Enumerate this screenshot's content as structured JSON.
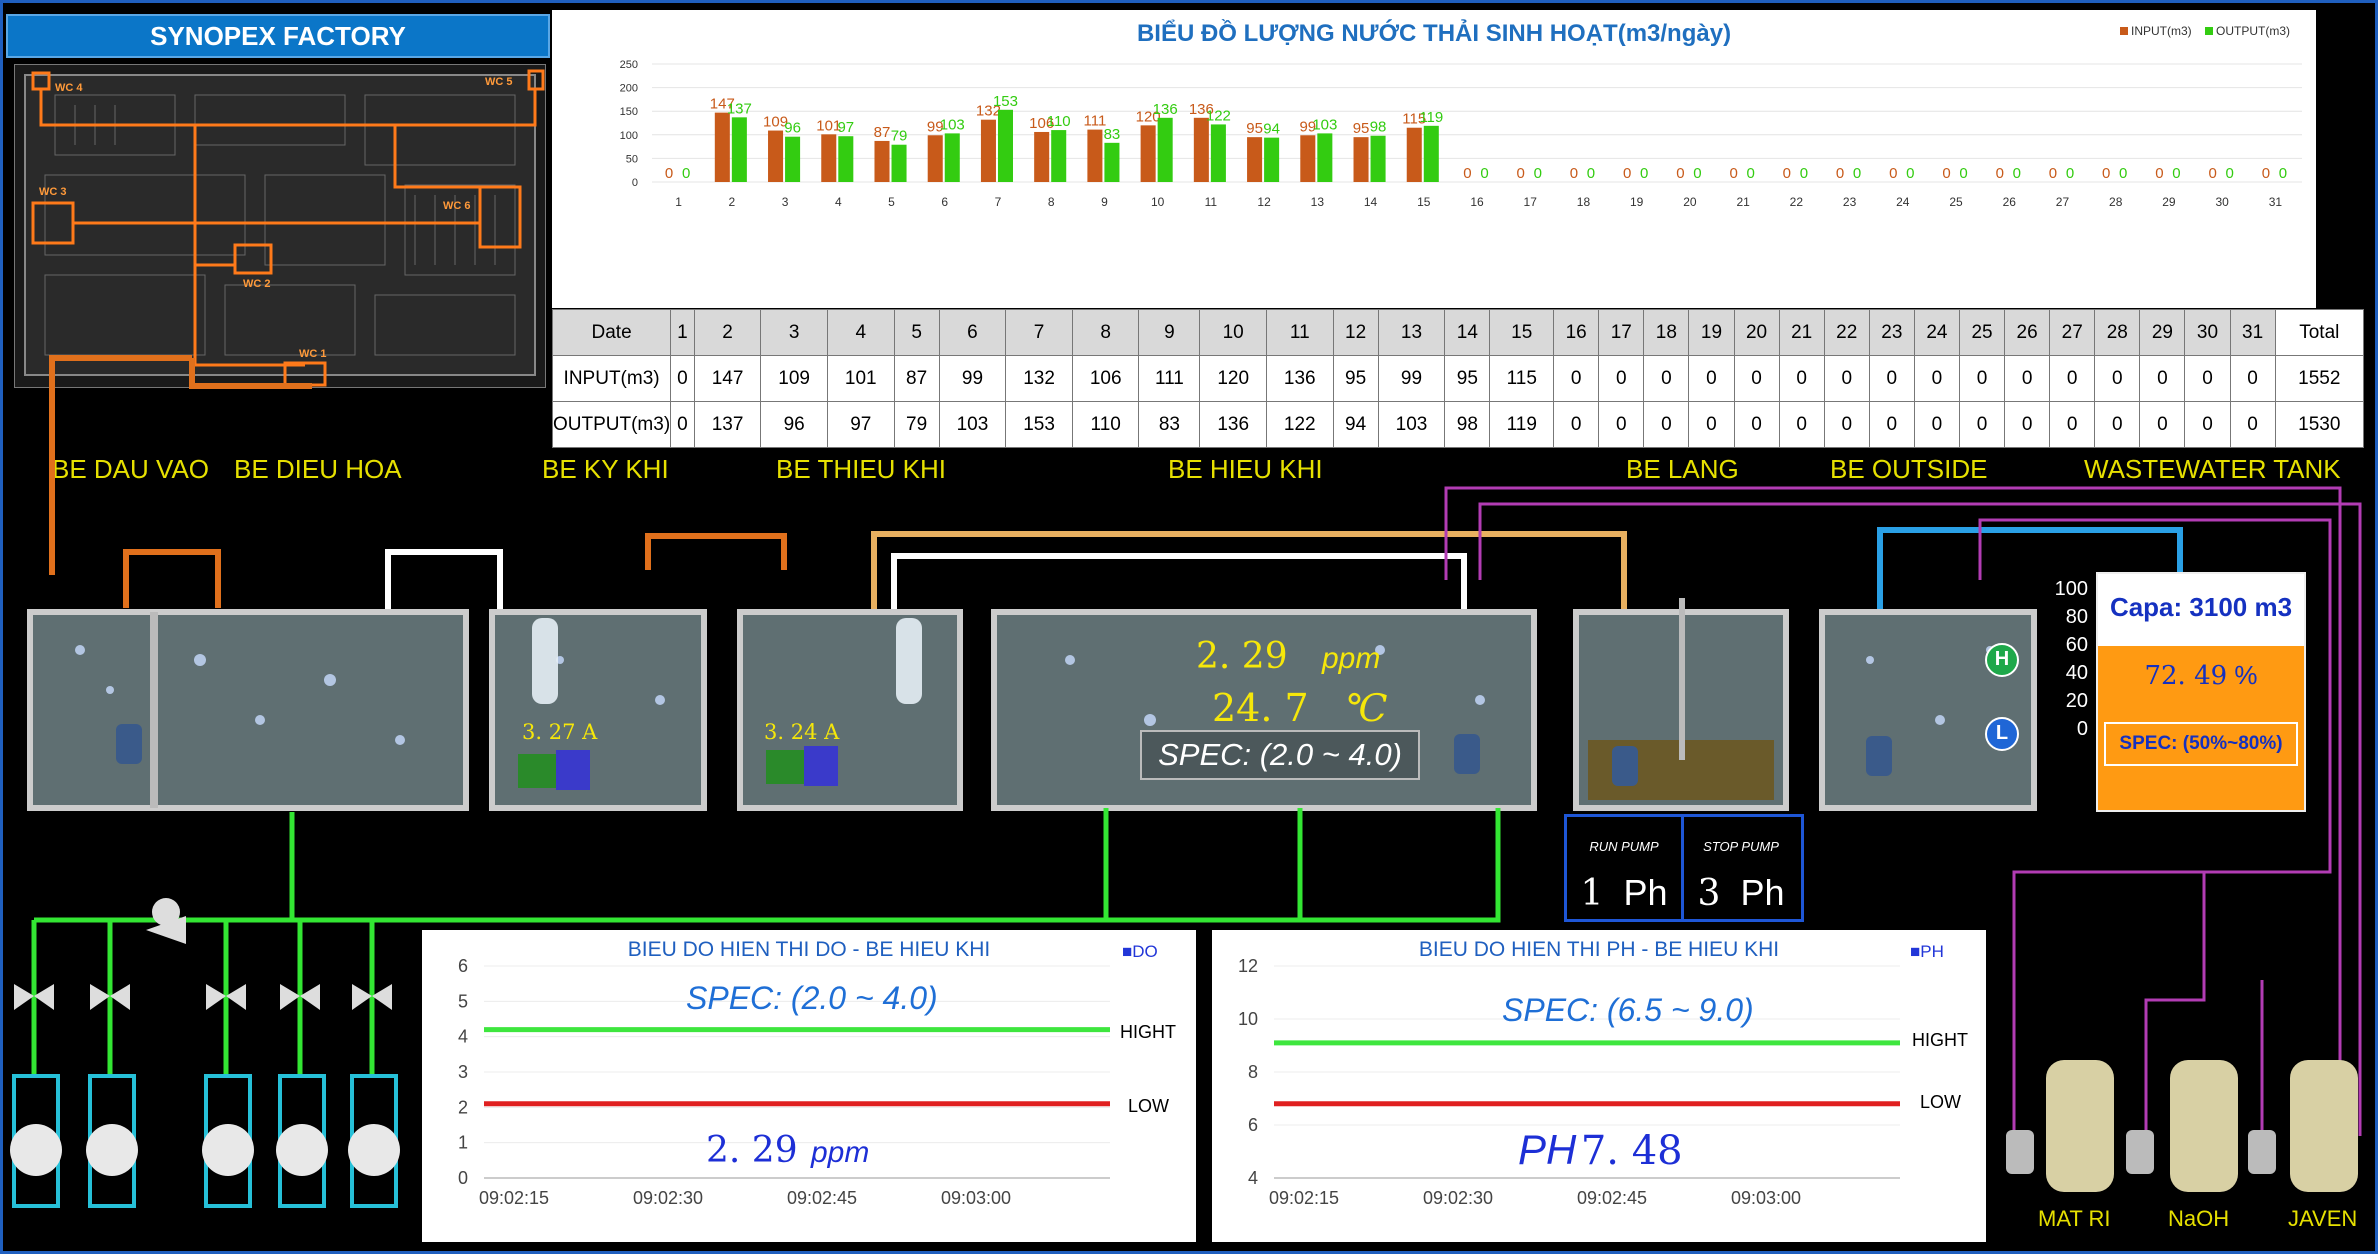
{
  "factory": {
    "title": "SYNOPEX FACTORY",
    "wc_labels": [
      "WC 4",
      "WC 5",
      "WC 3",
      "WC 6",
      "WC 2",
      "WC 1"
    ]
  },
  "chart_data": {
    "type": "bar",
    "title": "BIỂU ĐỒ LƯỢNG NƯỚC THẢI SINH HOẠT(m3/ngày)",
    "categories": [
      "1",
      "2",
      "3",
      "4",
      "5",
      "6",
      "7",
      "8",
      "9",
      "10",
      "11",
      "12",
      "13",
      "14",
      "15",
      "16",
      "17",
      "18",
      "19",
      "20",
      "21",
      "22",
      "23",
      "24",
      "25",
      "26",
      "27",
      "28",
      "29",
      "30",
      "31"
    ],
    "series": [
      {
        "name": "INPUT(m3)",
        "color": "#c85a1a",
        "values": [
          0,
          147,
          109,
          101,
          87,
          99,
          132,
          106,
          111,
          120,
          136,
          95,
          99,
          95,
          115,
          0,
          0,
          0,
          0,
          0,
          0,
          0,
          0,
          0,
          0,
          0,
          0,
          0,
          0,
          0,
          0
        ]
      },
      {
        "name": "OUTPUT(m3)",
        "color": "#33cc11",
        "values": [
          0,
          137,
          96,
          97,
          79,
          103,
          153,
          110,
          83,
          136,
          122,
          94,
          103,
          98,
          119,
          0,
          0,
          0,
          0,
          0,
          0,
          0,
          0,
          0,
          0,
          0,
          0,
          0,
          0,
          0,
          0
        ]
      }
    ],
    "ylim": [
      0,
      250
    ],
    "yticks": [
      0,
      50,
      100,
      150,
      200,
      250
    ],
    "legend": "top-right",
    "grid": true
  },
  "table": {
    "date_label": "Date",
    "input_label": "INPUT(m3)",
    "output_label": "OUTPUT(m3)",
    "total_label": "Total",
    "input_total": "1552",
    "output_total": "1530"
  },
  "tanks": {
    "be_dau_vao": "BE DAU VAO",
    "be_dieu_hoa": "BE DIEU HOA",
    "be_ky_khi": "BE KY KHI",
    "be_thieu_khi": "BE THIEU KHI",
    "be_hieu_khi": "BE HIEU KHI",
    "be_lang": "BE LANG",
    "be_outside": "BE OUTSIDE",
    "wastewater_tank": "WASTEWATER TANK"
  },
  "readings": {
    "current_1": "3. 27",
    "current_1_unit": "A",
    "current_2": "3. 24",
    "current_2_unit": "A",
    "do_value": "2. 29",
    "do_unit": "ppm",
    "temp_value": "24. 7",
    "temp_unit": "℃",
    "do_spec": "SPEC: (2.0 ~ 4.0)"
  },
  "level_indicators": {
    "high": "H",
    "low": "L"
  },
  "level_scale": [
    "100",
    "80",
    "60",
    "40",
    "20",
    "0"
  ],
  "wastewater": {
    "capa": "Capa: 3100 m3",
    "percent": "72. 49",
    "percent_sign": "%",
    "level_fraction": 0.7249,
    "spec": "SPEC: (50%~80%)"
  },
  "pumps": {
    "run_label": "RUN PUMP",
    "run_value": "1",
    "stop_label": "STOP PUMP",
    "stop_value": "3",
    "unit": "Ph"
  },
  "do_trend": {
    "title": "BIEU DO HIEN THI DO - BE HIEU KHI",
    "legend": "DO",
    "spec": "SPEC: (2.0 ~ 4.0)",
    "high_label": "HIGHT",
    "low_label": "LOW",
    "value": "2. 29",
    "unit": "ppm",
    "yticks": [
      "6",
      "5",
      "4",
      "3",
      "2",
      "1",
      "0"
    ],
    "xticks": [
      "09:02:15",
      "09:02:30",
      "09:02:45",
      "09:03:00"
    ],
    "high": 4.2,
    "low": 2.1,
    "ylim": [
      0,
      6
    ]
  },
  "ph_trend": {
    "title": "BIEU DO HIEN THI PH - BE HIEU KHI",
    "legend": "PH",
    "spec": "SPEC: (6.5 ~ 9.0)",
    "high_label": "HIGHT",
    "low_label": "LOW",
    "value_label": "PH",
    "value": "7. 48",
    "yticks": [
      "12",
      "10",
      "8",
      "6",
      "4"
    ],
    "xticks": [
      "09:02:15",
      "09:02:30",
      "09:02:45",
      "09:03:00"
    ],
    "high": 9.1,
    "low": 6.8,
    "ylim": [
      4,
      12
    ]
  },
  "chemicals": [
    "MAT RI",
    "NaOH",
    "JAVEN"
  ],
  "colors": {
    "accent": "#1f5fbf",
    "input": "#c85a1a",
    "output": "#33cc11",
    "pipe_green": "#33e633",
    "pipe_purple": "#b23cb4",
    "pipe_orange": "#e0701c",
    "pipe_blue": "#2aa0e6",
    "pipe_tan": "#e8b060"
  }
}
